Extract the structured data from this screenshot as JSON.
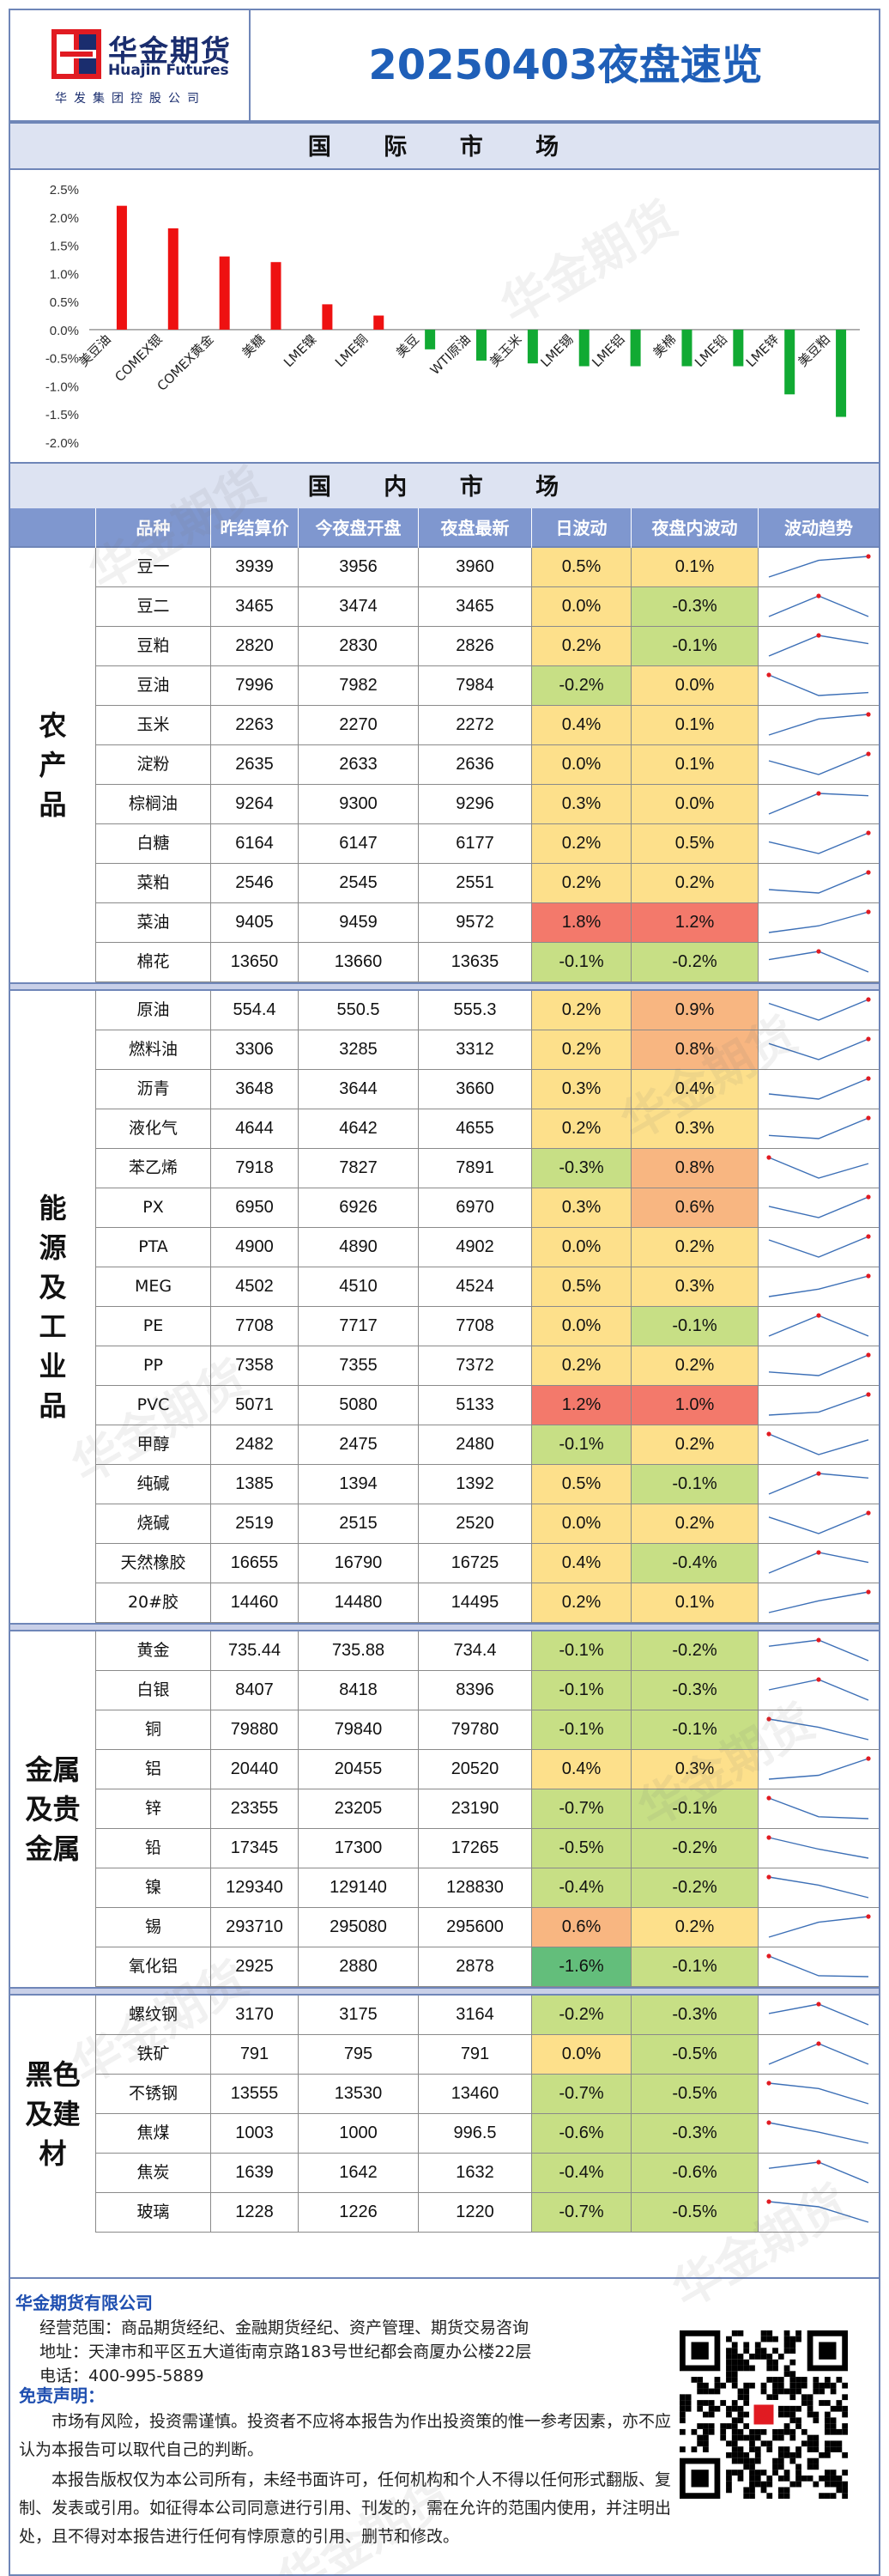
{
  "header": {
    "logo_cn": "华金期货",
    "logo_en": "Huajin Futures",
    "logo_sub": "华发集团控股公司",
    "title": "20250403夜盘速览"
  },
  "intl": {
    "section_title": "国 际 市 场",
    "chart_data": {
      "type": "bar",
      "title": "",
      "xlabel": "",
      "ylabel": "",
      "ylim": [
        -2.0,
        2.5
      ],
      "yticks": [
        "2.5%",
        "2.0%",
        "1.5%",
        "1.0%",
        "0.5%",
        "0.0%",
        "-0.5%",
        "-1.0%",
        "-1.5%",
        "-2.0%"
      ],
      "grid": false,
      "categories": [
        "美豆油",
        "COMEX银",
        "COMEX黄金",
        "美糖",
        "LME镍",
        "LME铜",
        "美豆",
        "WTI原油",
        "美玉米",
        "LME锡",
        "LME铝",
        "美棉",
        "LME铅",
        "LME锌",
        "美豆粕"
      ],
      "values": [
        2.2,
        1.8,
        1.3,
        1.2,
        0.45,
        0.25,
        -0.35,
        -0.55,
        -0.6,
        -0.65,
        -0.65,
        -0.65,
        -0.65,
        -1.15,
        -1.55
      ],
      "colors": {
        "positive": "#ee1111",
        "negative": "#11aa33"
      }
    }
  },
  "domestic": {
    "section_title": "国 内 市 场",
    "columns": [
      "品种",
      "昨结算价",
      "今夜盘开盘",
      "夜盘最新",
      "日波动",
      "夜盘内波动",
      "波动趋势"
    ],
    "colors": {
      "header_bg": "#7f97cf",
      "pos_high": "#f3796b",
      "pos_mid": "#f8b681",
      "pos_low": "#fde08b",
      "neg_low": "#c7df85",
      "neg_high": "#63be7b"
    },
    "groups": [
      {
        "label": "农\n产\n品",
        "label_chars": [
          "农",
          "产",
          "品"
        ],
        "rows": [
          {
            "name": "豆一",
            "prev": "3939",
            "open": "3956",
            "last": "3960",
            "d1": "0.5%",
            "d2": "0.1%",
            "d1v": 0.5,
            "d2v": 0.1,
            "trend": [
              3939,
              3956,
              3960
            ]
          },
          {
            "name": "豆二",
            "prev": "3465",
            "open": "3474",
            "last": "3465",
            "d1": "0.0%",
            "d2": "-0.3%",
            "d1v": 0.0,
            "d2v": -0.3,
            "trend": [
              3465,
              3474,
              3465
            ]
          },
          {
            "name": "豆粕",
            "prev": "2820",
            "open": "2830",
            "last": "2826",
            "d1": "0.2%",
            "d2": "-0.1%",
            "d1v": 0.2,
            "d2v": -0.1,
            "trend": [
              2820,
              2830,
              2826
            ]
          },
          {
            "name": "豆油",
            "prev": "7996",
            "open": "7982",
            "last": "7984",
            "d1": "-0.2%",
            "d2": "0.0%",
            "d1v": -0.2,
            "d2v": 0.0,
            "trend": [
              7996,
              7982,
              7984
            ]
          },
          {
            "name": "玉米",
            "prev": "2263",
            "open": "2270",
            "last": "2272",
            "d1": "0.4%",
            "d2": "0.1%",
            "d1v": 0.4,
            "d2v": 0.1,
            "trend": [
              2263,
              2270,
              2272
            ]
          },
          {
            "name": "淀粉",
            "prev": "2635",
            "open": "2633",
            "last": "2636",
            "d1": "0.0%",
            "d2": "0.1%",
            "d1v": 0.0,
            "d2v": 0.1,
            "trend": [
              2635,
              2633,
              2636
            ]
          },
          {
            "name": "棕榈油",
            "prev": "9264",
            "open": "9300",
            "last": "9296",
            "d1": "0.3%",
            "d2": "0.0%",
            "d1v": 0.3,
            "d2v": 0.0,
            "trend": [
              9264,
              9300,
              9296
            ]
          },
          {
            "name": "白糖",
            "prev": "6164",
            "open": "6147",
            "last": "6177",
            "d1": "0.2%",
            "d2": "0.5%",
            "d1v": 0.2,
            "d2v": 0.5,
            "trend": [
              6164,
              6147,
              6177
            ]
          },
          {
            "name": "菜粕",
            "prev": "2546",
            "open": "2545",
            "last": "2551",
            "d1": "0.2%",
            "d2": "0.2%",
            "d1v": 0.2,
            "d2v": 0.2,
            "trend": [
              2546,
              2545,
              2551
            ]
          },
          {
            "name": "菜油",
            "prev": "9405",
            "open": "9459",
            "last": "9572",
            "d1": "1.8%",
            "d2": "1.2%",
            "d1v": 1.8,
            "d2v": 1.2,
            "trend": [
              9405,
              9459,
              9572
            ]
          },
          {
            "name": "棉花",
            "prev": "13650",
            "open": "13660",
            "last": "13635",
            "d1": "-0.1%",
            "d2": "-0.2%",
            "d1v": -0.1,
            "d2v": -0.2,
            "trend": [
              13650,
              13660,
              13635
            ]
          }
        ]
      },
      {
        "label": "能\n源\n及\n工\n业\n品",
        "label_chars": [
          "能",
          "源",
          "及",
          "工",
          "业",
          "品"
        ],
        "rows": [
          {
            "name": "原油",
            "prev": "554.4",
            "open": "550.5",
            "last": "555.3",
            "d1": "0.2%",
            "d2": "0.9%",
            "d1v": 0.2,
            "d2v": 0.9,
            "trend": [
              554.4,
              550.5,
              555.3
            ]
          },
          {
            "name": "燃料油",
            "prev": "3306",
            "open": "3285",
            "last": "3312",
            "d1": "0.2%",
            "d2": "0.8%",
            "d1v": 0.2,
            "d2v": 0.8,
            "trend": [
              3306,
              3285,
              3312
            ]
          },
          {
            "name": "沥青",
            "prev": "3648",
            "open": "3644",
            "last": "3660",
            "d1": "0.3%",
            "d2": "0.4%",
            "d1v": 0.3,
            "d2v": 0.4,
            "trend": [
              3648,
              3644,
              3660
            ]
          },
          {
            "name": "液化气",
            "prev": "4644",
            "open": "4642",
            "last": "4655",
            "d1": "0.2%",
            "d2": "0.3%",
            "d1v": 0.2,
            "d2v": 0.3,
            "trend": [
              4644,
              4642,
              4655
            ]
          },
          {
            "name": "苯乙烯",
            "prev": "7918",
            "open": "7827",
            "last": "7891",
            "d1": "-0.3%",
            "d2": "0.8%",
            "d1v": -0.3,
            "d2v": 0.8,
            "trend": [
              7918,
              7827,
              7891
            ]
          },
          {
            "name": "PX",
            "prev": "6950",
            "open": "6926",
            "last": "6970",
            "d1": "0.3%",
            "d2": "0.6%",
            "d1v": 0.3,
            "d2v": 0.6,
            "trend": [
              6950,
              6926,
              6970
            ]
          },
          {
            "name": "PTA",
            "prev": "4900",
            "open": "4890",
            "last": "4902",
            "d1": "0.0%",
            "d2": "0.2%",
            "d1v": 0.0,
            "d2v": 0.2,
            "trend": [
              4900,
              4890,
              4902
            ]
          },
          {
            "name": "MEG",
            "prev": "4502",
            "open": "4510",
            "last": "4524",
            "d1": "0.5%",
            "d2": "0.3%",
            "d1v": 0.5,
            "d2v": 0.3,
            "trend": [
              4502,
              4510,
              4524
            ]
          },
          {
            "name": "PE",
            "prev": "7708",
            "open": "7717",
            "last": "7708",
            "d1": "0.0%",
            "d2": "-0.1%",
            "d1v": 0.0,
            "d2v": -0.1,
            "trend": [
              7708,
              7717,
              7708
            ]
          },
          {
            "name": "PP",
            "prev": "7358",
            "open": "7355",
            "last": "7372",
            "d1": "0.2%",
            "d2": "0.2%",
            "d1v": 0.2,
            "d2v": 0.2,
            "trend": [
              7358,
              7355,
              7372
            ]
          },
          {
            "name": "PVC",
            "prev": "5071",
            "open": "5080",
            "last": "5133",
            "d1": "1.2%",
            "d2": "1.0%",
            "d1v": 1.2,
            "d2v": 1.0,
            "trend": [
              5071,
              5080,
              5133
            ]
          },
          {
            "name": "甲醇",
            "prev": "2482",
            "open": "2475",
            "last": "2480",
            "d1": "-0.1%",
            "d2": "0.2%",
            "d1v": -0.1,
            "d2v": 0.2,
            "trend": [
              2482,
              2475,
              2480
            ]
          },
          {
            "name": "纯碱",
            "prev": "1385",
            "open": "1394",
            "last": "1392",
            "d1": "0.5%",
            "d2": "-0.1%",
            "d1v": 0.5,
            "d2v": -0.1,
            "trend": [
              1385,
              1394,
              1392
            ]
          },
          {
            "name": "烧碱",
            "prev": "2519",
            "open": "2515",
            "last": "2520",
            "d1": "0.0%",
            "d2": "0.2%",
            "d1v": 0.0,
            "d2v": 0.2,
            "trend": [
              2519,
              2515,
              2520
            ]
          },
          {
            "name": "天然橡胶",
            "prev": "16655",
            "open": "16790",
            "last": "16725",
            "d1": "0.4%",
            "d2": "-0.4%",
            "d1v": 0.4,
            "d2v": -0.4,
            "trend": [
              16655,
              16790,
              16725
            ]
          },
          {
            "name": "20#胶",
            "prev": "14460",
            "open": "14480",
            "last": "14495",
            "d1": "0.2%",
            "d2": "0.1%",
            "d1v": 0.2,
            "d2v": 0.1,
            "trend": [
              14460,
              14480,
              14495
            ]
          }
        ]
      },
      {
        "label": "金属\n及贵\n金属",
        "label_chars": [
          "金属",
          "及贵",
          "金属"
        ],
        "rows": [
          {
            "name": "黄金",
            "prev": "735.44",
            "open": "735.88",
            "last": "734.4",
            "d1": "-0.1%",
            "d2": "-0.2%",
            "d1v": -0.1,
            "d2v": -0.2,
            "trend": [
              735.44,
              735.88,
              734.4
            ]
          },
          {
            "name": "白银",
            "prev": "8407",
            "open": "8418",
            "last": "8396",
            "d1": "-0.1%",
            "d2": "-0.3%",
            "d1v": -0.1,
            "d2v": -0.3,
            "trend": [
              8407,
              8418,
              8396
            ]
          },
          {
            "name": "铜",
            "prev": "79880",
            "open": "79840",
            "last": "79780",
            "d1": "-0.1%",
            "d2": "-0.1%",
            "d1v": -0.1,
            "d2v": -0.1,
            "trend": [
              79880,
              79840,
              79780
            ]
          },
          {
            "name": "铝",
            "prev": "20440",
            "open": "20455",
            "last": "20520",
            "d1": "0.4%",
            "d2": "0.3%",
            "d1v": 0.4,
            "d2v": 0.3,
            "trend": [
              20440,
              20455,
              20520
            ]
          },
          {
            "name": "锌",
            "prev": "23355",
            "open": "23205",
            "last": "23190",
            "d1": "-0.7%",
            "d2": "-0.1%",
            "d1v": -0.7,
            "d2v": -0.1,
            "trend": [
              23355,
              23205,
              23190
            ]
          },
          {
            "name": "铅",
            "prev": "17345",
            "open": "17300",
            "last": "17265",
            "d1": "-0.5%",
            "d2": "-0.2%",
            "d1v": -0.5,
            "d2v": -0.2,
            "trend": [
              17345,
              17300,
              17265
            ]
          },
          {
            "name": "镍",
            "prev": "129340",
            "open": "129140",
            "last": "128830",
            "d1": "-0.4%",
            "d2": "-0.2%",
            "d1v": -0.4,
            "d2v": -0.2,
            "trend": [
              129340,
              129140,
              128830
            ]
          },
          {
            "name": "锡",
            "prev": "293710",
            "open": "295080",
            "last": "295600",
            "d1": "0.6%",
            "d2": "0.2%",
            "d1v": 0.6,
            "d2v": 0.2,
            "trend": [
              293710,
              295080,
              295600
            ]
          },
          {
            "name": "氧化铝",
            "prev": "2925",
            "open": "2880",
            "last": "2878",
            "d1": "-1.6%",
            "d2": "-0.1%",
            "d1v": -1.6,
            "d2v": -0.1,
            "trend": [
              2925,
              2880,
              2878
            ]
          }
        ]
      },
      {
        "label": "黑色\n及建\n材",
        "label_chars": [
          "黑色",
          "及建",
          "材"
        ],
        "rows": [
          {
            "name": "螺纹钢",
            "prev": "3170",
            "open": "3175",
            "last": "3164",
            "d1": "-0.2%",
            "d2": "-0.3%",
            "d1v": -0.2,
            "d2v": -0.3,
            "trend": [
              3170,
              3175,
              3164
            ]
          },
          {
            "name": "铁矿",
            "prev": "791",
            "open": "795",
            "last": "791",
            "d1": "0.0%",
            "d2": "-0.5%",
            "d1v": 0.0,
            "d2v": -0.5,
            "trend": [
              791,
              795,
              791
            ]
          },
          {
            "name": "不锈钢",
            "prev": "13555",
            "open": "13530",
            "last": "13460",
            "d1": "-0.7%",
            "d2": "-0.5%",
            "d1v": -0.7,
            "d2v": -0.5,
            "trend": [
              13555,
              13530,
              13460
            ]
          },
          {
            "name": "焦煤",
            "prev": "1003",
            "open": "1000",
            "last": "996.5",
            "d1": "-0.6%",
            "d2": "-0.3%",
            "d1v": -0.6,
            "d2v": -0.3,
            "trend": [
              1003,
              1000,
              996.5
            ]
          },
          {
            "name": "焦炭",
            "prev": "1639",
            "open": "1642",
            "last": "1632",
            "d1": "-0.4%",
            "d2": "-0.6%",
            "d1v": -0.4,
            "d2v": -0.6,
            "trend": [
              1639,
              1642,
              1632
            ]
          },
          {
            "name": "玻璃",
            "prev": "1228",
            "open": "1226",
            "last": "1220",
            "d1": "-0.7%",
            "d2": "-0.5%",
            "d1v": -0.7,
            "d2v": -0.5,
            "trend": [
              1228,
              1226,
              1220
            ]
          }
        ]
      }
    ]
  },
  "footer": {
    "company": "华金期货有限公司",
    "scope": "经营范围：商品期货经纪、金融期货经纪、资产管理、期货交易咨询",
    "address": "地址：天津市和平区五大道街南京路183号世纪都会商厦办公楼22层",
    "phone": "电话：400-995-5889",
    "disclaimer_title": "免责声明：",
    "para1": "市场有风险，投资需谨慎。投资者不应将本报告为作出投资策的惟一参考因素，亦不应认为本报告可以取代自己的判断。",
    "para2": "本报告版权仅为本公司所有，未经书面许可，任何机构和个人不得以任何形式翻版、复制、发表或引用。如征得本公司同意进行引用、刊发的，需在允许的范围内使用，并注明出处，且不得对本报告进行任何有悖原意的引用、删节和修改。",
    "qr_caption": "华金期货"
  },
  "watermark": "华金期货"
}
